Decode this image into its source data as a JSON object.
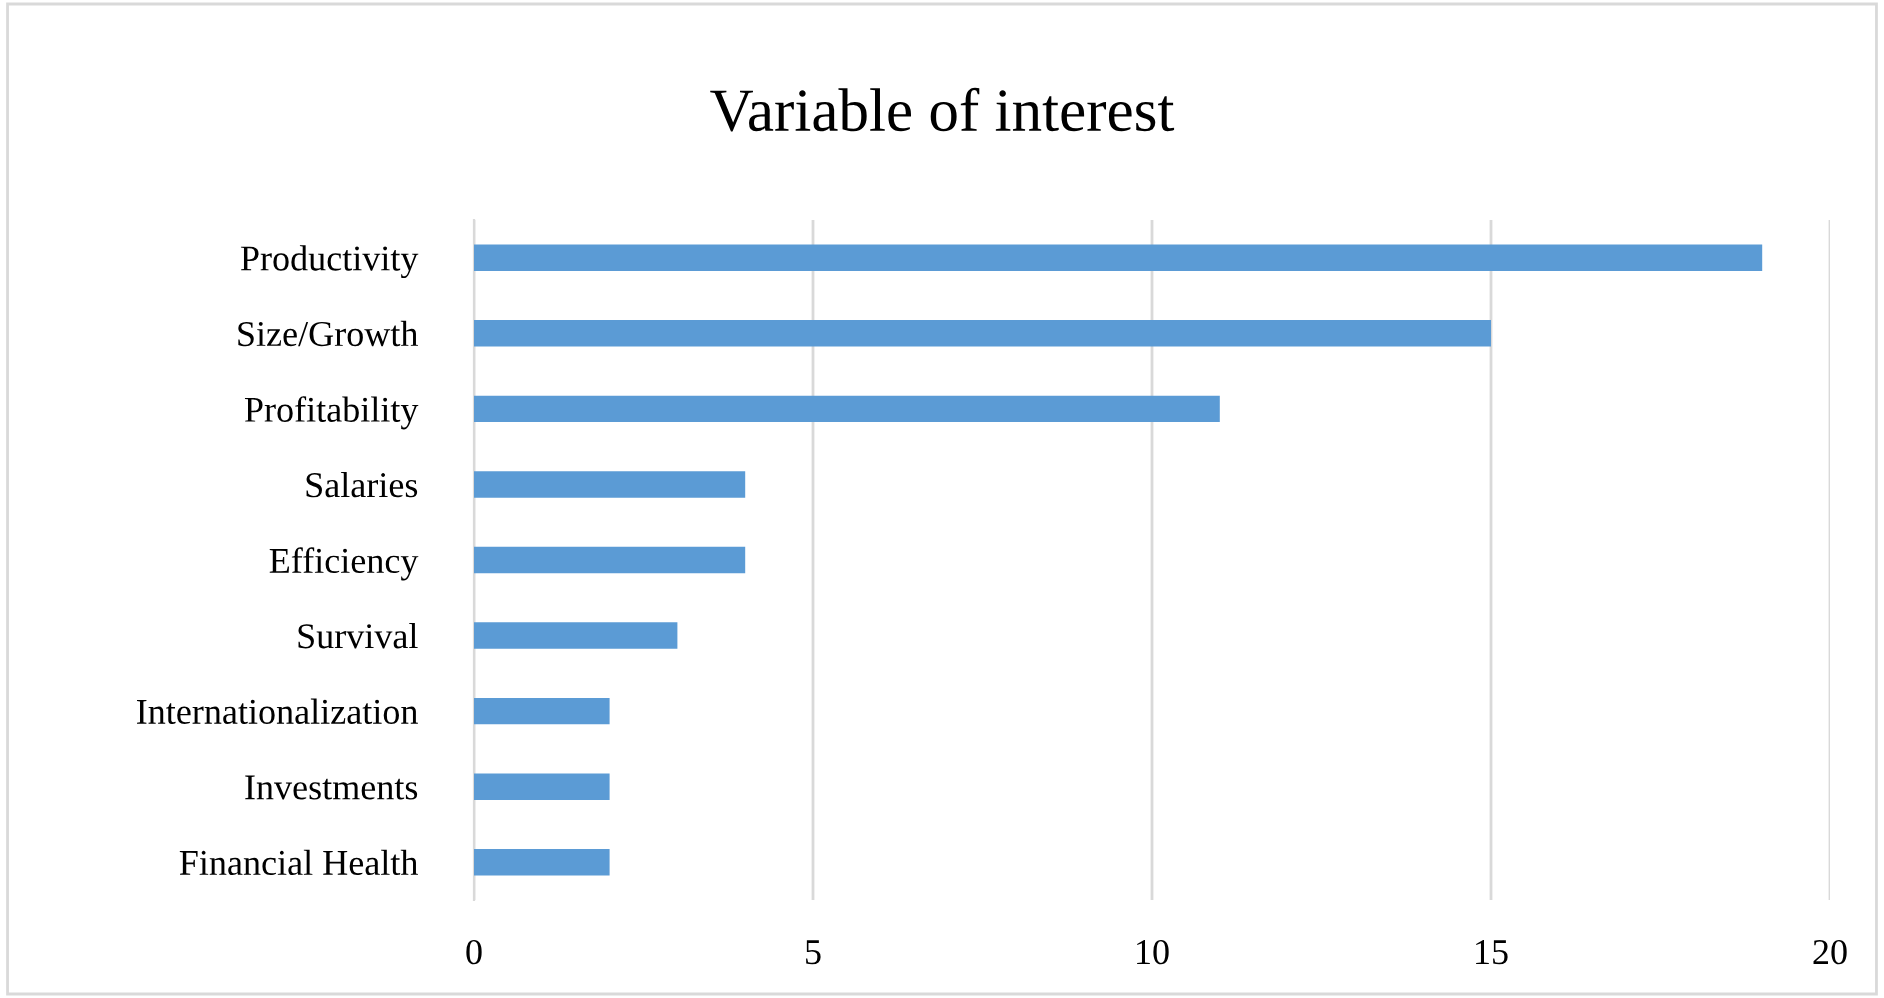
{
  "chart_data": {
    "type": "bar",
    "orientation": "horizontal",
    "title": "Variable of interest",
    "categories": [
      "Productivity",
      "Size/Growth",
      "Profitability",
      "Salaries",
      "Efficiency",
      "Survival",
      "Internationalization",
      "Investments",
      "Financial Health"
    ],
    "values": [
      19,
      15,
      11,
      4,
      4,
      3,
      2,
      2,
      2
    ],
    "color": "#5b9bd5",
    "xlim": [
      0,
      20
    ],
    "xticks": [
      0,
      5,
      10,
      15,
      20
    ],
    "grid": "x",
    "legend": false
  }
}
